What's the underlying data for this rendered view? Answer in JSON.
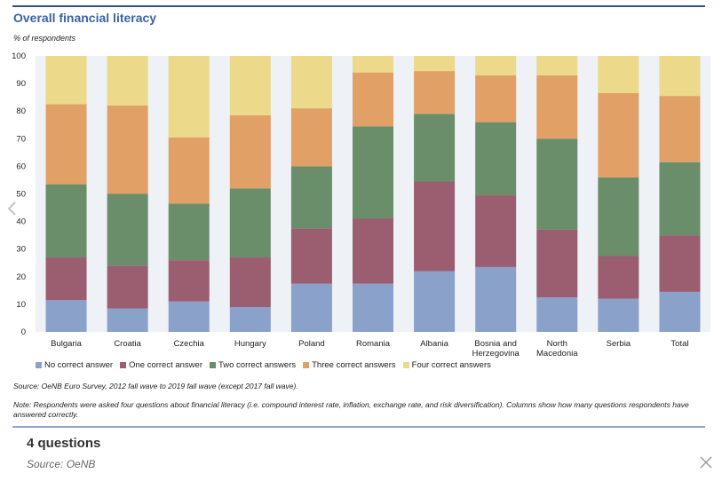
{
  "header": {
    "title": "Overall financial literacy",
    "y_unit": "% of respondents"
  },
  "chart_data": {
    "type": "bar",
    "stacked": true,
    "title": "Overall financial literacy",
    "ylabel": "% of respondents",
    "ylim": [
      0,
      100
    ],
    "yticks": [
      0,
      10,
      20,
      30,
      40,
      50,
      60,
      70,
      80,
      90,
      100
    ],
    "grid": false,
    "legend_position": "bottom",
    "categories": [
      "Bulgaria",
      "Croatia",
      "Czechia",
      "Hungary",
      "Poland",
      "Romania",
      "Albania",
      "Bosnia and Herzegovina",
      "North Macedonia",
      "Serbia",
      "Total"
    ],
    "series": [
      {
        "name": "No correct answer",
        "color": "#8aa1c9",
        "values": [
          11.5,
          8.5,
          11,
          9,
          17.5,
          17.5,
          22,
          23.5,
          12.5,
          12,
          14.5
        ]
      },
      {
        "name": "One correct answer",
        "color": "#9b5e70",
        "values": [
          15.5,
          15.5,
          15,
          18,
          20,
          23.5,
          32.5,
          26,
          24.5,
          15.5,
          20.5
        ]
      },
      {
        "name": "Two correct answers",
        "color": "#6a8e6a",
        "values": [
          26.5,
          26,
          20.5,
          25,
          22.5,
          33.5,
          24.5,
          26.5,
          33,
          28.5,
          26.5
        ]
      },
      {
        "name": "Three correct answers",
        "color": "#e0a066",
        "values": [
          29,
          32,
          24,
          26.5,
          21,
          19.5,
          15.5,
          17,
          23,
          30.5,
          24
        ]
      },
      {
        "name": "Four correct answers",
        "color": "#ecd98a",
        "values": [
          17.5,
          18,
          29.5,
          21.5,
          19,
          6,
          5.5,
          7,
          7,
          13.5,
          14.5
        ]
      }
    ]
  },
  "footer": {
    "source": "Source: OeNB Euro Survey, 2012 fall wave to 2019 fall wave (except 2017 fall wave).",
    "note": "Note: Respondents were asked four questions about financial literacy (i.e. compound interest rate, inflation, exchange rate, and risk diversification). Columns show how many questions respondents have answered correctly."
  },
  "caption": {
    "title": "4 questions",
    "source": "Source: OeNB"
  },
  "controls": {
    "prev_icon": "chevron-left-icon",
    "close_icon": "close-icon"
  }
}
